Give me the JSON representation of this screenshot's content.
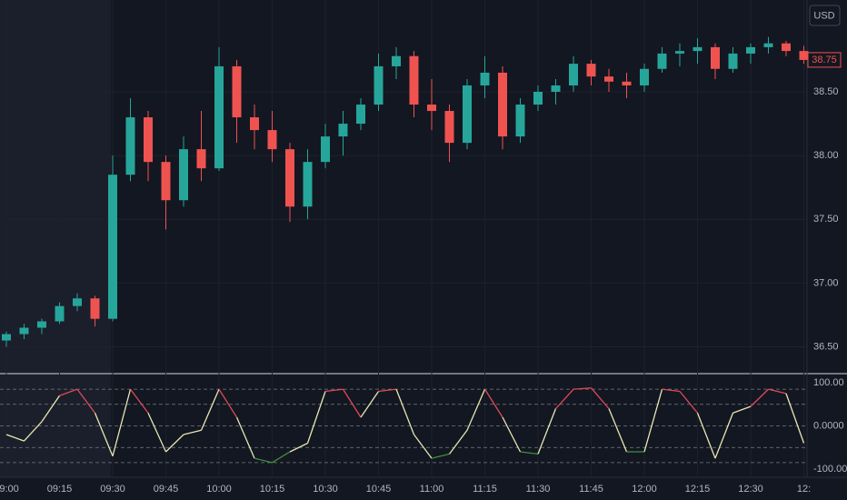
{
  "chart_data": [
    {
      "type": "candlestick",
      "currency": "USD",
      "categories": [
        "09:00",
        null,
        null,
        "09:15",
        null,
        null,
        "09:30",
        null,
        null,
        "09:45",
        null,
        null,
        "10:00",
        null,
        null,
        "10:15",
        null,
        null,
        "10:30",
        null,
        null,
        "10:45",
        null,
        null,
        "11:00",
        null,
        null,
        "11:15",
        null,
        null,
        "11:30",
        null,
        null,
        "11:45",
        null,
        null,
        "12:00",
        null,
        null,
        "12:15",
        null,
        null,
        "12:30",
        null,
        null,
        "12:"
      ],
      "open": [
        36.55,
        36.6,
        36.65,
        36.7,
        36.82,
        36.88,
        36.72,
        37.85,
        38.3,
        37.95,
        37.65,
        38.05,
        37.9,
        38.7,
        38.3,
        38.2,
        38.05,
        37.6,
        37.95,
        38.15,
        38.25,
        38.4,
        38.7,
        38.78,
        38.4,
        38.35,
        38.1,
        38.55,
        38.65,
        38.15,
        38.4,
        38.5,
        38.55,
        38.72,
        38.62,
        38.58,
        38.55,
        38.68,
        38.8,
        38.82,
        38.85,
        38.68,
        38.8,
        38.85,
        38.88,
        38.82
      ],
      "high": [
        36.62,
        36.68,
        36.72,
        36.85,
        36.92,
        36.9,
        38.0,
        38.45,
        38.35,
        38.0,
        38.15,
        38.35,
        38.85,
        38.75,
        38.4,
        38.35,
        38.1,
        38.05,
        38.25,
        38.35,
        38.45,
        38.8,
        38.85,
        38.82,
        38.6,
        38.4,
        38.6,
        38.78,
        38.7,
        38.45,
        38.55,
        38.6,
        38.78,
        38.75,
        38.68,
        38.65,
        38.72,
        38.85,
        38.88,
        38.92,
        38.88,
        38.85,
        38.88,
        38.93,
        38.9,
        38.86
      ],
      "low": [
        36.5,
        36.56,
        36.6,
        36.68,
        36.78,
        36.66,
        36.7,
        37.8,
        37.8,
        37.42,
        37.6,
        37.8,
        37.88,
        38.1,
        38.05,
        37.95,
        37.48,
        37.5,
        37.9,
        38.0,
        38.2,
        38.35,
        38.6,
        38.3,
        38.2,
        37.95,
        38.05,
        38.45,
        38.05,
        38.1,
        38.35,
        38.4,
        38.5,
        38.55,
        38.5,
        38.45,
        38.5,
        38.65,
        38.7,
        38.72,
        38.6,
        38.65,
        38.72,
        38.8,
        38.78,
        38.72
      ],
      "close": [
        36.6,
        36.65,
        36.7,
        36.82,
        36.88,
        36.72,
        37.85,
        38.3,
        37.95,
        37.65,
        38.05,
        37.9,
        38.7,
        38.3,
        38.2,
        38.05,
        37.6,
        37.95,
        38.15,
        38.25,
        38.4,
        38.7,
        38.78,
        38.4,
        38.35,
        38.1,
        38.55,
        38.65,
        38.15,
        38.4,
        38.5,
        38.55,
        38.72,
        38.62,
        38.58,
        38.55,
        38.68,
        38.8,
        38.82,
        38.85,
        38.68,
        38.8,
        38.85,
        38.88,
        38.82,
        38.75
      ],
      "up_color": "#26a69a",
      "down_color": "#ef5350",
      "ylim": [
        36.29,
        39.22
      ],
      "yticks": [
        {
          "value": 36.5,
          "label": "36.50"
        },
        {
          "value": 37,
          "label": "37.00"
        },
        {
          "value": 37.5,
          "label": "37.50"
        },
        {
          "value": 38,
          "label": "38.00"
        },
        {
          "value": 38.5,
          "label": "38.50"
        }
      ],
      "grid": true
    },
    {
      "type": "line",
      "values": [
        -20,
        -35,
        10,
        70,
        85,
        30,
        -70,
        85,
        30,
        -60,
        -20,
        -10,
        85,
        20,
        -75,
        -85,
        -60,
        -40,
        80,
        85,
        20,
        80,
        85,
        -20,
        -75,
        -65,
        -10,
        85,
        20,
        -60,
        -65,
        40,
        85,
        88,
        40,
        -60,
        -60,
        85,
        80,
        30,
        -75,
        30,
        45,
        85,
        75,
        -40
      ],
      "colors": {
        "high": "#e04a55",
        "mid": "#e8e6b0",
        "low": "#3f8f3a"
      },
      "hlines": [
        85,
        50,
        0,
        -50,
        -85
      ],
      "ylim": [
        -119,
        119
      ],
      "yticks": [
        {
          "value": -100,
          "label": "-100.00"
        },
        {
          "value": 0,
          "label": "0.0000"
        },
        {
          "value": 100,
          "label": "100.00"
        }
      ]
    }
  ]
}
